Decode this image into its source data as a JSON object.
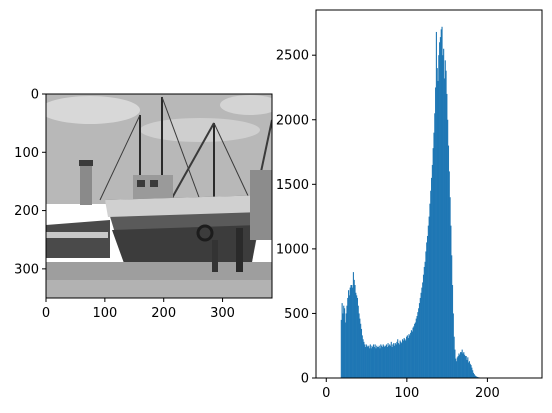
{
  "chart_data": [
    {
      "type": "image",
      "xlim": [
        0,
        384
      ],
      "ylim": [
        350,
        0
      ],
      "x_ticks": [
        0,
        100,
        200,
        300
      ],
      "y_ticks": [
        0,
        100,
        200,
        300
      ],
      "x_tick_labels": [
        "0",
        "100",
        "200",
        "300"
      ],
      "y_tick_labels": [
        "0",
        "100",
        "200",
        "300"
      ],
      "colormap": "gray",
      "content": "grayscale photograph"
    },
    {
      "type": "bar",
      "subtype": "histogram",
      "color": "#1f77b4",
      "xlim": [
        -12.75,
        267.75
      ],
      "ylim": [
        0,
        2850
      ],
      "x_ticks": [
        0,
        100,
        200
      ],
      "y_ticks": [
        0,
        500,
        1000,
        1500,
        2000,
        2500
      ],
      "x_tick_labels": [
        "0",
        "100",
        "200"
      ],
      "y_tick_labels": [
        "0",
        "500",
        "1000",
        "1500",
        "2000",
        "2500"
      ],
      "bin_width": 1,
      "x_start": 18,
      "values": [
        450,
        580,
        500,
        560,
        540,
        430,
        500,
        560,
        620,
        680,
        640,
        700,
        720,
        720,
        700,
        820,
        760,
        720,
        660,
        640,
        620,
        560,
        500,
        460,
        420,
        380,
        330,
        300,
        280,
        260,
        240,
        260,
        250,
        240,
        250,
        230,
        260,
        230,
        250,
        240,
        260,
        240,
        260,
        230,
        250,
        240,
        240,
        250,
        230,
        260,
        250,
        240,
        260,
        250,
        240,
        250,
        260,
        240,
        270,
        250,
        260,
        250,
        280,
        240,
        260,
        270,
        250,
        270,
        260,
        280,
        300,
        270,
        260,
        290,
        280,
        270,
        300,
        290,
        310,
        300,
        290,
        320,
        330,
        310,
        340,
        330,
        350,
        370,
        360,
        390,
        400,
        420,
        430,
        460,
        480,
        510,
        540,
        580,
        620,
        660,
        700,
        740,
        800,
        860,
        900,
        980,
        1050,
        1100,
        1180,
        1250,
        1350,
        1450,
        1550,
        1650,
        1780,
        1900,
        2050,
        2250,
        2680,
        2400,
        2300,
        2500,
        2600,
        2640,
        2700,
        2720,
        2500,
        2550,
        2320,
        2460,
        2380,
        2200,
        2000,
        1800,
        1600,
        1400,
        1180,
        950,
        720,
        500,
        320,
        220,
        150,
        130,
        160,
        170,
        190,
        180,
        200,
        200,
        220,
        190,
        200,
        180,
        170,
        170,
        140,
        160,
        120,
        130,
        110,
        100,
        80,
        60,
        40,
        30,
        20,
        15,
        10,
        8,
        6,
        5
      ]
    }
  ]
}
